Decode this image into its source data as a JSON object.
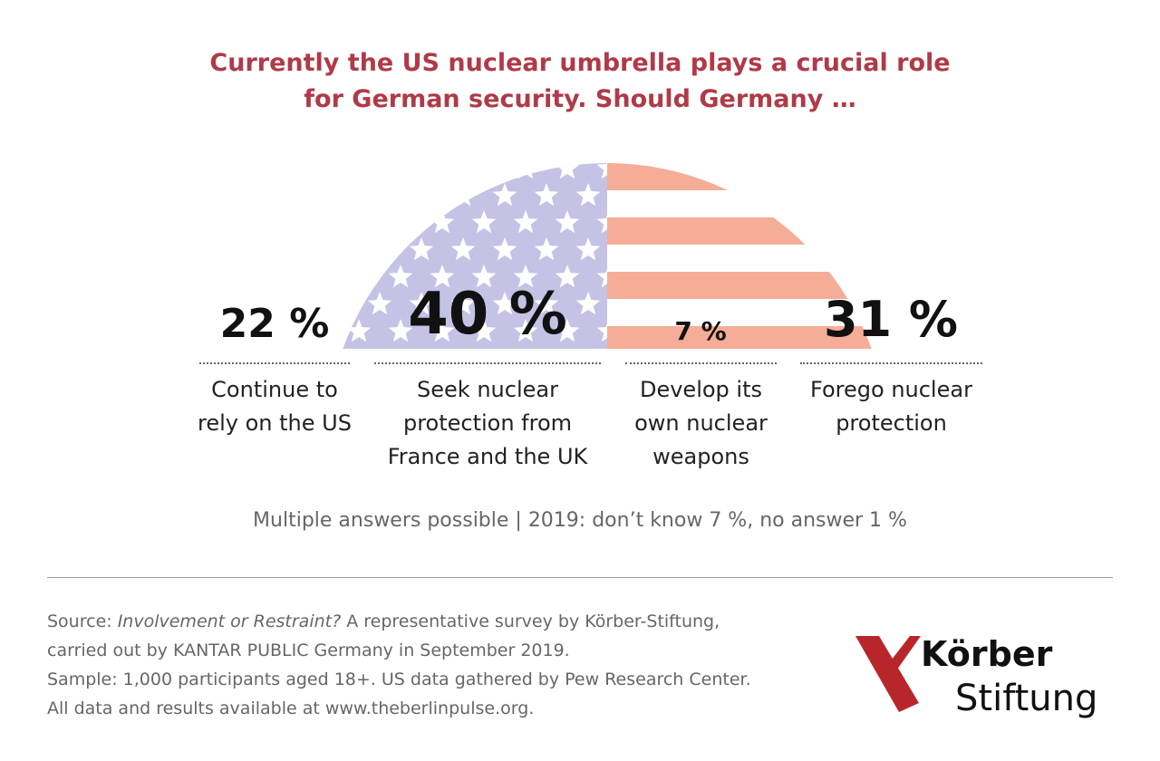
{
  "title_line1": "Currently the US nuclear umbrella plays a crucial role",
  "title_line2": "for German security. Should Germany …",
  "chart_data": {
    "type": "bar",
    "title": "Currently the US nuclear umbrella plays a crucial role for German security. Should Germany …",
    "categories": [
      "Continue to rely on the US",
      "Seek nuclear protection from France and the UK",
      "Develop its own nuclear weapons",
      "Forego nuclear protection"
    ],
    "values": [
      22,
      40,
      7,
      31
    ],
    "value_labels": [
      "22 %",
      "40 %",
      "7 %",
      "31 %"
    ],
    "unit": "%"
  },
  "labels": {
    "c1": [
      "Continue to",
      "rely on the US"
    ],
    "c2": [
      "Seek nuclear",
      "protection from",
      "France and the UK"
    ],
    "c3": [
      "Develop its",
      "own nuclear",
      "weapons"
    ],
    "c4": [
      "Forego nuclear",
      "protection"
    ]
  },
  "note": "Multiple answers possible | 2019: don’t know 7 %, no answer 1 %",
  "source": {
    "prefix": "Source: ",
    "title": "Involvement or Restraint?",
    "line1_rest": " A representative survey by Körber-Stiftung,",
    "line2": "carried out by KANTAR PUBLIC Germany in September 2019.",
    "line3": "Sample: 1,000 participants aged 18+. US data gathered by Pew Research Center.",
    "line4": "All data and results available at www.theberlinpulse.org."
  },
  "logo": {
    "line1": "Körber",
    "line2": "Stiftung"
  },
  "colors": {
    "title": "#b03a48",
    "stars_field": "#c4c3e6",
    "stripes": "#f5ad97",
    "logo_red": "#b8262c"
  }
}
